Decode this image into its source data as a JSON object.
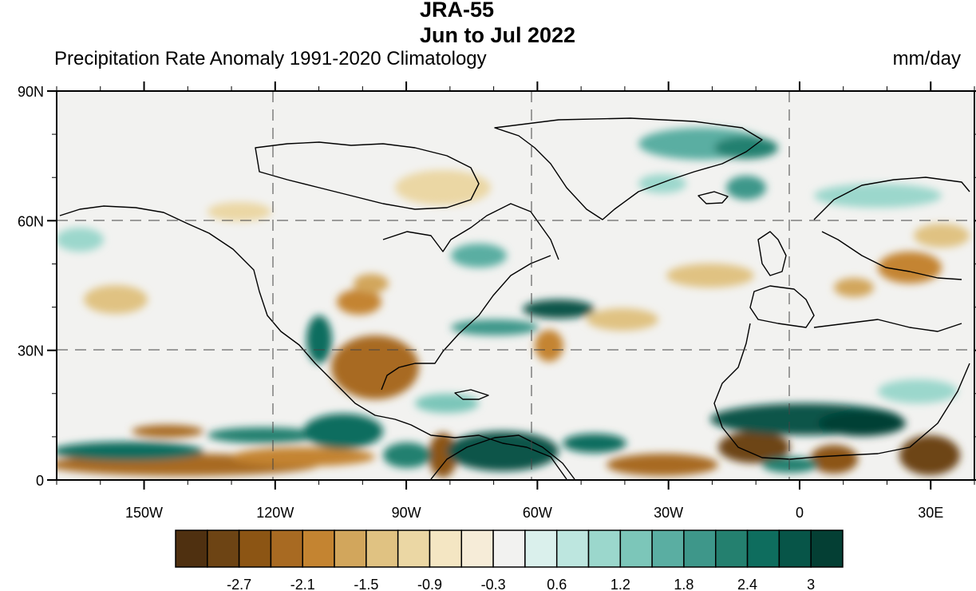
{
  "header": {
    "title_line1": "JRA-55",
    "title_line2": "Jun to Jul 2022",
    "subtitle": "Precipitation Rate Anomaly 1991-2020 Climatology",
    "units": "mm/day"
  },
  "map": {
    "projection": "cylindrical-equidistant",
    "lon_range": [
      -170,
      40
    ],
    "lat_range": [
      0,
      90
    ],
    "gridlines": "dashed",
    "x_ticks": [
      {
        "lon": -150,
        "label": "150W"
      },
      {
        "lon": -120,
        "label": "120W"
      },
      {
        "lon": -90,
        "label": "90W"
      },
      {
        "lon": -60,
        "label": "60W"
      },
      {
        "lon": -30,
        "label": "30W"
      },
      {
        "lon": 0,
        "label": "0"
      },
      {
        "lon": 30,
        "label": "30E"
      }
    ],
    "y_ticks": [
      {
        "lat": 90,
        "label": "90N"
      },
      {
        "lat": 60,
        "label": "60N"
      },
      {
        "lat": 30,
        "label": "30N"
      },
      {
        "lat": 0,
        "label": "0"
      }
    ],
    "dry_color": "#a0601a",
    "wet_color": "#0e6d5e"
  },
  "colorbar": {
    "colors": [
      "#4f3010",
      "#6d4414",
      "#8c5514",
      "#a86a22",
      "#c48431",
      "#d2a65c",
      "#e0c282",
      "#ebd7a4",
      "#f4e6c3",
      "#f6ecd8",
      "#f2f2f0",
      "#daf0ec",
      "#bde6df",
      "#9bd7cc",
      "#7cc6b9",
      "#5aaea2",
      "#3e978a",
      "#24806f",
      "#0e6d5e",
      "#075548",
      "#043f34"
    ],
    "labels": [
      {
        "after_index": 1,
        "text": "-2.7"
      },
      {
        "after_index": 3,
        "text": "-2.1"
      },
      {
        "after_index": 5,
        "text": "-1.5"
      },
      {
        "after_index": 7,
        "text": "-0.9"
      },
      {
        "after_index": 9,
        "text": "-0.3"
      },
      {
        "after_index": 11,
        "text": "0.6"
      },
      {
        "after_index": 13,
        "text": "1.2"
      },
      {
        "after_index": 15,
        "text": "1.8"
      },
      {
        "after_index": 17,
        "text": "2.4"
      },
      {
        "after_index": 19,
        "text": "3"
      }
    ]
  }
}
